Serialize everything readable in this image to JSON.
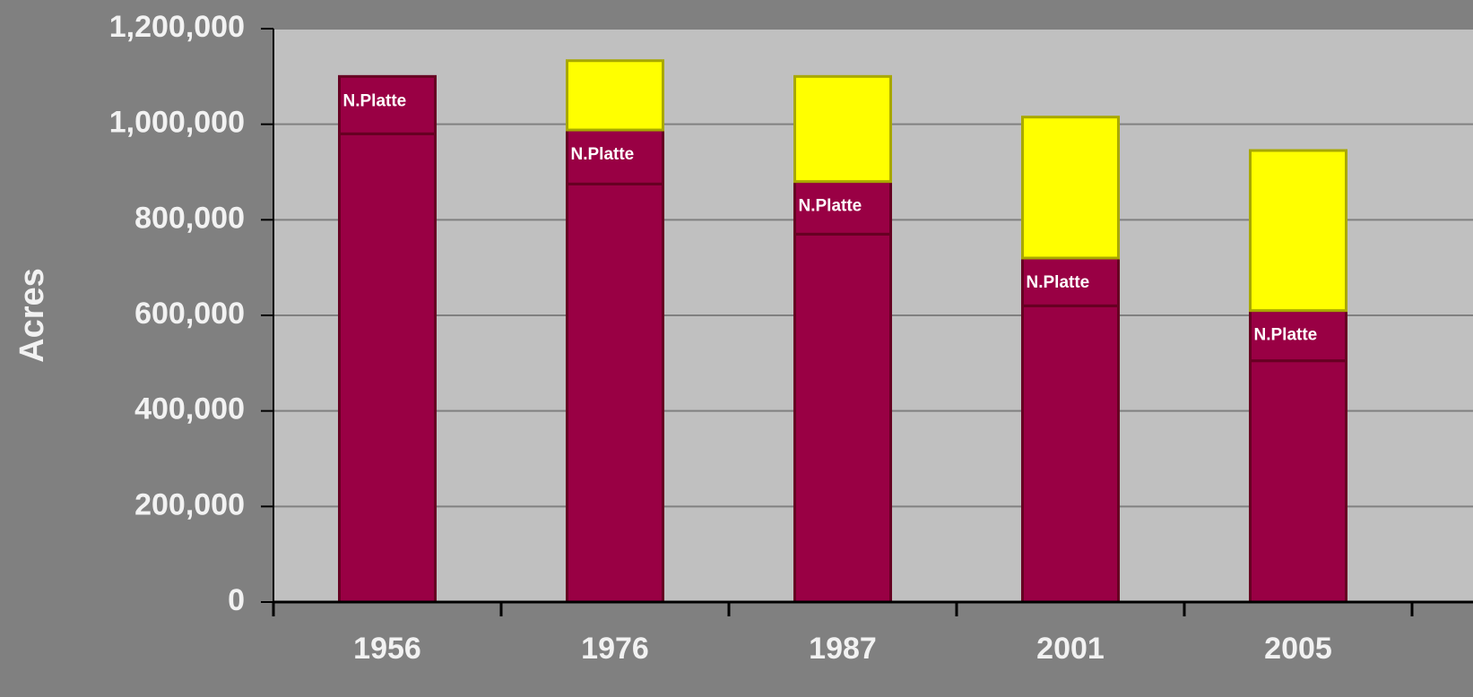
{
  "chart_data": {
    "type": "stacked_bar",
    "y_label": "Acres",
    "categories": [
      "1956",
      "1976",
      "1987",
      "2001",
      "2005"
    ],
    "series": [
      {
        "color": "#990044",
        "values": [
          980000,
          875000,
          770000,
          620000,
          505000
        ]
      },
      {
        "name": "N.Platte",
        "color": "#990044",
        "values": [
          120000,
          113000,
          110000,
          100000,
          105000
        ]
      },
      {
        "color": "#ffff00",
        "values": [
          null,
          145000,
          220000,
          295000,
          335000
        ]
      }
    ],
    "ylim": [
      0,
      1200000
    ],
    "yticks": [
      0,
      {
        "value": 200000,
        "label": "200,000"
      },
      {
        "value": 400000,
        "label": "400,000"
      },
      {
        "value": 600000,
        "label": "600,000"
      },
      {
        "value": 800000,
        "label": "800,000"
      },
      {
        "value": 1000000,
        "label": "1,000,000"
      },
      {
        "value": 1200000,
        "label": "1,200,000"
      }
    ],
    "grid": true
  }
}
